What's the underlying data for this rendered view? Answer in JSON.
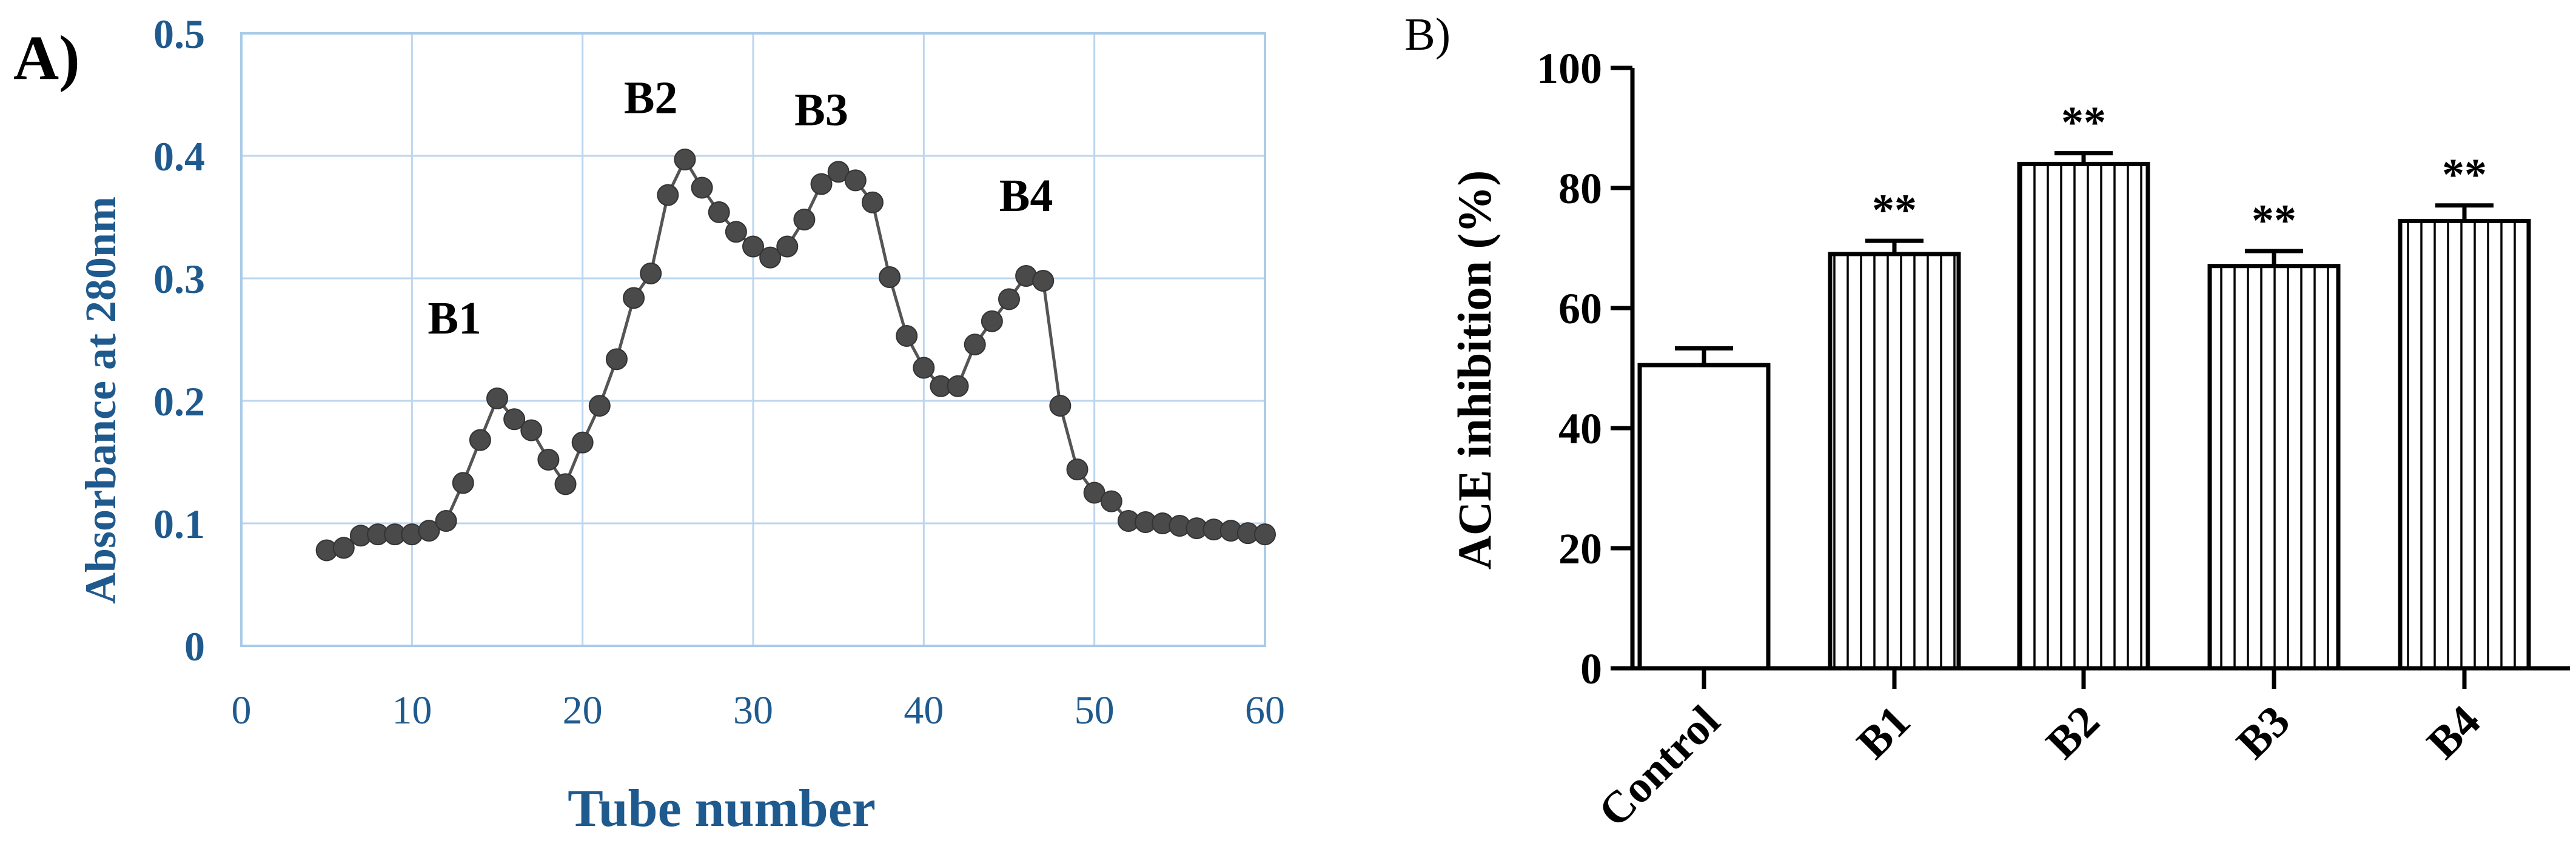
{
  "figure": {
    "panel_a_label": "A)",
    "panel_b_label": "B)"
  },
  "colors": {
    "axis_blue": "#1f5a8e",
    "grid_blue": "#bcd6ee",
    "frame_blue": "#a9cbe8",
    "marker": "#4a4a4a",
    "line": "#555555",
    "black": "#000000"
  },
  "chart_data": [
    {
      "type": "line",
      "title": "",
      "xlabel": "Tube number",
      "ylabel": "Absorbance at 280nm",
      "xlim": [
        0,
        60
      ],
      "ylim": [
        0,
        0.5
      ],
      "x_ticks": [
        0,
        10,
        20,
        30,
        40,
        50,
        60
      ],
      "y_ticks": [
        0,
        0.1,
        0.2,
        0.3,
        0.4,
        0.5
      ],
      "y_tick_labels": [
        "0",
        "0.1",
        "0.2",
        "0.3",
        "0.4",
        "0.5"
      ],
      "grid": true,
      "series": [
        {
          "name": "Absorbance",
          "x": [
            5,
            6,
            7,
            8,
            9,
            10,
            11,
            12,
            13,
            14,
            15,
            16,
            17,
            18,
            19,
            20,
            21,
            22,
            23,
            24,
            25,
            26,
            27,
            28,
            29,
            30,
            31,
            32,
            33,
            34,
            35,
            36,
            37,
            38,
            39,
            40,
            41,
            42,
            43,
            44,
            45,
            46,
            47,
            48,
            49,
            50,
            51,
            52,
            53,
            54,
            55,
            56,
            57,
            58,
            59,
            60
          ],
          "y": [
            0.078,
            0.08,
            0.09,
            0.091,
            0.091,
            0.091,
            0.094,
            0.102,
            0.133,
            0.168,
            0.202,
            0.185,
            0.176,
            0.152,
            0.132,
            0.166,
            0.196,
            0.234,
            0.284,
            0.304,
            0.368,
            0.397,
            0.374,
            0.354,
            0.338,
            0.326,
            0.317,
            0.326,
            0.348,
            0.377,
            0.387,
            0.38,
            0.362,
            0.301,
            0.253,
            0.227,
            0.212,
            0.212,
            0.246,
            0.265,
            0.283,
            0.302,
            0.298,
            0.196,
            0.144,
            0.125,
            0.118,
            0.102,
            0.101,
            0.1,
            0.098,
            0.096,
            0.095,
            0.094,
            0.092,
            0.091
          ]
        }
      ],
      "annotations": [
        {
          "text": "B1",
          "x": 12.5,
          "y": 0.255
        },
        {
          "text": "B2",
          "x": 24.0,
          "y": 0.435
        },
        {
          "text": "B3",
          "x": 34.0,
          "y": 0.425
        },
        {
          "text": "B4",
          "x": 46.0,
          "y": 0.355
        }
      ]
    },
    {
      "type": "bar",
      "title": "",
      "xlabel": "",
      "ylabel": "ACE inhibition (%)",
      "ylim": [
        0,
        100
      ],
      "y_ticks": [
        0,
        20,
        40,
        60,
        80,
        100
      ],
      "categories": [
        "Control",
        "B1",
        "B2",
        "B3",
        "B4"
      ],
      "values": [
        50.5,
        69.0,
        84.0,
        67.0,
        74.5
      ],
      "errors": [
        2.8,
        2.2,
        1.8,
        2.5,
        2.6
      ],
      "significance": [
        "",
        "**",
        "**",
        "**",
        "**"
      ],
      "hatch": [
        "none",
        "vertical",
        "vertical",
        "vertical",
        "vertical"
      ]
    }
  ]
}
